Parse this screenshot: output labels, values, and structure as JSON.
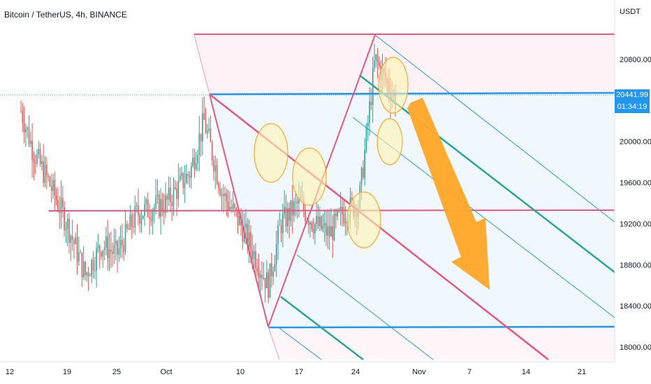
{
  "header": {
    "title": "Bitcoin / TetherUS, 4h, BINANCE"
  },
  "axis": {
    "unit": "USDT"
  },
  "last_price": {
    "value": "20441.99",
    "countdown": "01:34:19",
    "color": "#2196f3"
  },
  "colors": {
    "red": "#e8577e",
    "blue": "#2196f3",
    "green": "#26a69a",
    "up": "#26a69a",
    "down": "#ef5350",
    "orange": "#ffa726",
    "circle_fill": "#fff3b0"
  },
  "chart_data": {
    "type": "candlestick",
    "symbol": "BTCUSDT",
    "interval": "4h",
    "y_ticks": [
      "20800.00",
      "20400.00",
      "20000.00",
      "19600.00",
      "19200.00",
      "18800.00",
      "18400.00",
      "18000.00"
    ],
    "x_ticks": [
      "12",
      "19",
      "25",
      "Oct",
      "10",
      "17",
      "24",
      "Nov",
      "7",
      "14",
      "21"
    ],
    "ylim": [
      17900,
      21200
    ],
    "levels": [
      {
        "price": 20441.99,
        "label": "current price",
        "style": "dotted"
      },
      {
        "price": 20441.99,
        "label": "pitchfork top",
        "color": "blue"
      },
      {
        "price": 18200,
        "label": "pitchfork bottom",
        "color": "blue"
      },
      {
        "price": 19330,
        "label": "horizontal support",
        "color": "red"
      },
      {
        "price": 21020,
        "label": "range high",
        "color": "red"
      }
    ],
    "candle_trend": [
      {
        "date": "Sep 12",
        "price": 20300
      },
      {
        "date": "Sep 14",
        "price": 19900
      },
      {
        "date": "Sep 17",
        "price": 19600
      },
      {
        "date": "Sep 19",
        "price": 19200
      },
      {
        "date": "Sep 21",
        "price": 18700
      },
      {
        "date": "Sep 23",
        "price": 19000
      },
      {
        "date": "Sep 25",
        "price": 18900
      },
      {
        "date": "Sep 28",
        "price": 19300
      },
      {
        "date": "Oct 1",
        "price": 19400
      },
      {
        "date": "Oct 4",
        "price": 19700
      },
      {
        "date": "Oct 6",
        "price": 20200
      },
      {
        "date": "Oct 8",
        "price": 19500
      },
      {
        "date": "Oct 10",
        "price": 19200
      },
      {
        "date": "Oct 13",
        "price": 18600
      },
      {
        "date": "Oct 15",
        "price": 19200
      },
      {
        "date": "Oct 17",
        "price": 19400
      },
      {
        "date": "Oct 19",
        "price": 19200
      },
      {
        "date": "Oct 21",
        "price": 19100
      },
      {
        "date": "Oct 23",
        "price": 19300
      },
      {
        "date": "Oct 25",
        "price": 19400
      },
      {
        "date": "Oct 26",
        "price": 20800
      },
      {
        "date": "Oct 27",
        "price": 20600
      },
      {
        "date": "Oct 28",
        "price": 20400
      }
    ]
  }
}
